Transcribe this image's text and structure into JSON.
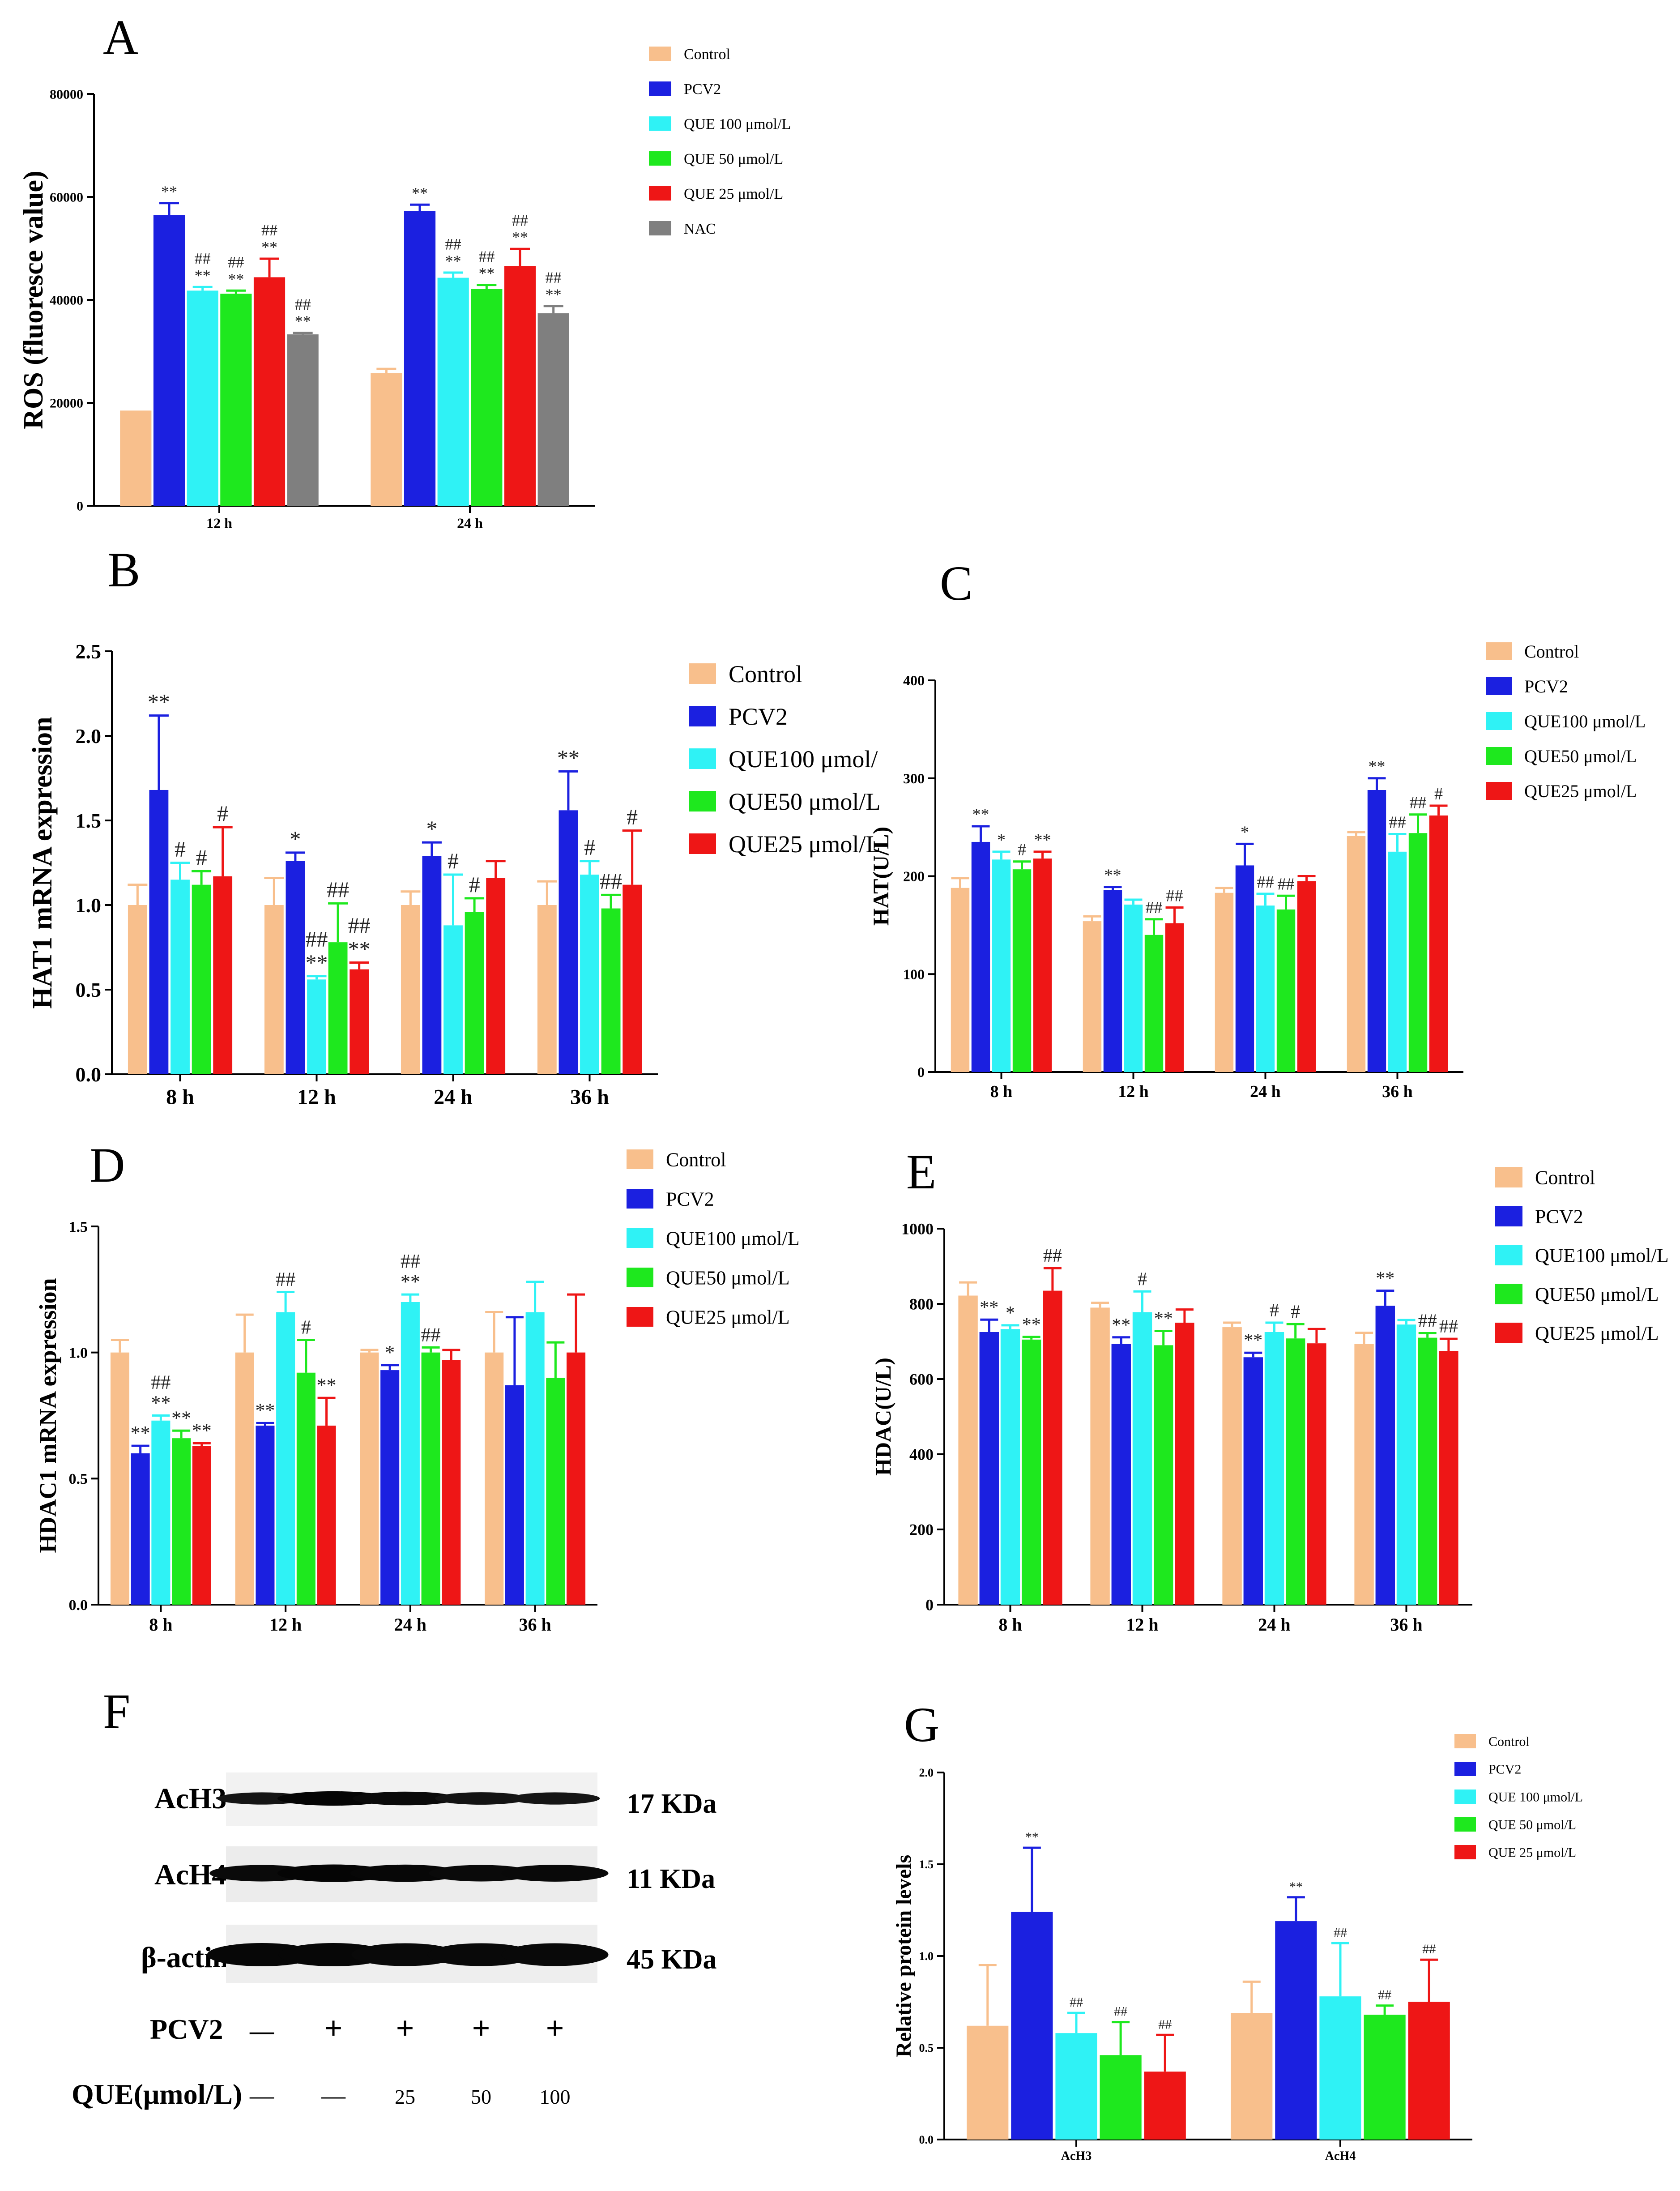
{
  "colors": {
    "Control": "#f8bf8c",
    "PCV2": "#1b20e0",
    "QUE100": "#2ff2f5",
    "QUE50": "#1ee81e",
    "QUE25": "#ee1616",
    "NAC": "#7f7f7f"
  },
  "chart_data": [
    {
      "panel": "A",
      "type": "bar",
      "title": "",
      "ylabel": "ROS (fluoresce value)",
      "xlabel": "",
      "ylim": [
        0,
        80000
      ],
      "yticks": [
        0,
        20000,
        40000,
        60000,
        80000
      ],
      "categories": [
        "12 h",
        "24 h"
      ],
      "series": [
        {
          "name": "Control",
          "key": "Control",
          "values": [
            18500,
            25800
          ],
          "errors": [
            0,
            800
          ],
          "annotations": [
            [],
            []
          ]
        },
        {
          "name": "PCV2",
          "key": "PCV2",
          "values": [
            56500,
            57300
          ],
          "errors": [
            2300,
            1200
          ],
          "annotations": [
            [
              "**"
            ],
            [
              "**"
            ]
          ]
        },
        {
          "name": "QUE 100 μmol/L",
          "key": "QUE100",
          "values": [
            41800,
            44300
          ],
          "errors": [
            700,
            1000
          ],
          "annotations": [
            [
              "##",
              "**"
            ],
            [
              "##",
              "**"
            ]
          ]
        },
        {
          "name": "QUE 50 μmol/L",
          "key": "QUE50",
          "values": [
            41200,
            42100
          ],
          "errors": [
            600,
            800
          ],
          "annotations": [
            [
              "##",
              "**"
            ],
            [
              "##",
              "**"
            ]
          ]
        },
        {
          "name": "QUE 25 μmol/L",
          "key": "QUE25",
          "values": [
            44400,
            46600
          ],
          "errors": [
            3600,
            3300
          ],
          "annotations": [
            [
              "##",
              "**"
            ],
            [
              "##",
              "**"
            ]
          ]
        },
        {
          "name": "NAC",
          "key": "NAC",
          "values": [
            33300,
            37400
          ],
          "errors": [
            300,
            1400
          ],
          "annotations": [
            [
              "##",
              "**"
            ],
            [
              "##",
              "**"
            ]
          ]
        }
      ]
    },
    {
      "panel": "B",
      "type": "bar",
      "title": "",
      "ylabel": "HAT1 mRNA expression",
      "xlabel": "",
      "ylim": [
        0,
        2.5
      ],
      "yticks": [
        0.0,
        0.5,
        1.0,
        1.5,
        2.0,
        2.5
      ],
      "categories": [
        "8 h",
        "12 h",
        "24 h",
        "36 h"
      ],
      "series": [
        {
          "name": "Control",
          "key": "Control",
          "values": [
            1.0,
            1.0,
            1.0,
            1.0
          ],
          "errors": [
            0.12,
            0.16,
            0.08,
            0.14
          ],
          "annotations": [
            [],
            [],
            [],
            []
          ]
        },
        {
          "name": "PCV2",
          "key": "PCV2",
          "values": [
            1.68,
            1.26,
            1.29,
            1.56
          ],
          "errors": [
            0.44,
            0.05,
            0.08,
            0.23
          ],
          "annotations": [
            [
              "**"
            ],
            [
              "*"
            ],
            [
              "*"
            ],
            [
              "**"
            ]
          ]
        },
        {
          "name": "QUE100 μmol/",
          "key": "QUE100",
          "values": [
            1.15,
            0.56,
            0.88,
            1.18
          ],
          "errors": [
            0.1,
            0.02,
            0.3,
            0.08
          ],
          "annotations": [
            [
              "#"
            ],
            [
              "##",
              "**"
            ],
            [
              "#"
            ],
            [
              "#"
            ]
          ]
        },
        {
          "name": "QUE50 μmol/L",
          "key": "QUE50",
          "values": [
            1.12,
            0.78,
            0.96,
            0.98
          ],
          "errors": [
            0.08,
            0.23,
            0.08,
            0.08
          ],
          "annotations": [
            [
              "#"
            ],
            [
              "##"
            ],
            [
              "#"
            ],
            [
              "##"
            ]
          ]
        },
        {
          "name": "QUE25 μmol/L",
          "key": "QUE25",
          "values": [
            1.17,
            0.62,
            1.16,
            1.12
          ],
          "errors": [
            0.29,
            0.04,
            0.1,
            0.32
          ],
          "annotations": [
            [
              "#"
            ],
            [
              "##",
              "**"
            ],
            [],
            [
              "#"
            ]
          ]
        }
      ]
    },
    {
      "panel": "C",
      "type": "bar",
      "title": "",
      "ylabel": "HAT(U/L)",
      "xlabel": "",
      "ylim": [
        0,
        400
      ],
      "yticks": [
        0,
        100,
        200,
        300,
        400
      ],
      "categories": [
        "8 h",
        "12 h",
        "24 h",
        "36 h"
      ],
      "series": [
        {
          "name": "Control",
          "key": "Control",
          "values": [
            188,
            154,
            183,
            241
          ],
          "errors": [
            10,
            5,
            5,
            4
          ],
          "annotations": [
            [],
            [],
            [],
            []
          ]
        },
        {
          "name": "PCV2",
          "key": "PCV2",
          "values": [
            235,
            186,
            211,
            288
          ],
          "errors": [
            16,
            3,
            22,
            12
          ],
          "annotations": [
            [
              "**"
            ],
            [
              "**"
            ],
            [
              "*"
            ],
            [
              "**"
            ]
          ]
        },
        {
          "name": "QUE100 μmol/L",
          "key": "QUE100",
          "values": [
            217,
            171,
            170,
            225
          ],
          "errors": [
            8,
            5,
            12,
            18
          ],
          "annotations": [
            [
              "*"
            ],
            [],
            [
              "##"
            ],
            [
              "##"
            ]
          ]
        },
        {
          "name": "QUE50 μmol/L",
          "key": "QUE50",
          "values": [
            207,
            140,
            166,
            244
          ],
          "errors": [
            8,
            16,
            14,
            19
          ],
          "annotations": [
            [
              "#"
            ],
            [
              "##"
            ],
            [
              "##"
            ],
            [
              "##"
            ]
          ]
        },
        {
          "name": "QUE25 μmol/L",
          "key": "QUE25",
          "values": [
            218,
            152,
            195,
            262
          ],
          "errors": [
            7,
            16,
            5,
            10
          ],
          "annotations": [
            [
              "**"
            ],
            [
              "##"
            ],
            [],
            [
              "#"
            ]
          ]
        }
      ]
    },
    {
      "panel": "D",
      "type": "bar",
      "title": "",
      "ylabel": "HDAC1 mRNA expression",
      "xlabel": "",
      "ylim": [
        0,
        1.5
      ],
      "yticks": [
        0.0,
        0.5,
        1.0,
        1.5
      ],
      "categories": [
        "8 h",
        "12 h",
        "24 h",
        "36 h"
      ],
      "series": [
        {
          "name": "Control",
          "key": "Control",
          "values": [
            1.0,
            1.0,
            1.0,
            1.0
          ],
          "errors": [
            0.05,
            0.15,
            0.01,
            0.16
          ],
          "annotations": [
            [],
            [],
            [],
            []
          ]
        },
        {
          "name": "PCV2",
          "key": "PCV2",
          "values": [
            0.6,
            0.71,
            0.93,
            0.87
          ],
          "errors": [
            0.03,
            0.01,
            0.02,
            0.27
          ],
          "annotations": [
            [
              "**"
            ],
            [
              "**"
            ],
            [
              "*"
            ],
            []
          ]
        },
        {
          "name": "QUE100 μmol/L",
          "key": "QUE100",
          "values": [
            0.73,
            1.16,
            1.2,
            1.16
          ],
          "errors": [
            0.02,
            0.08,
            0.03,
            0.12
          ],
          "annotations": [
            [
              "##",
              "**"
            ],
            [
              "##"
            ],
            [
              "##",
              "**"
            ],
            []
          ]
        },
        {
          "name": "QUE50 μmol/L",
          "key": "QUE50",
          "values": [
            0.66,
            0.92,
            1.0,
            0.9
          ],
          "errors": [
            0.03,
            0.13,
            0.02,
            0.14
          ],
          "annotations": [
            [
              "**"
            ],
            [
              "#"
            ],
            [
              "##"
            ],
            []
          ]
        },
        {
          "name": "QUE25 μmol/L",
          "key": "QUE25",
          "values": [
            0.63,
            0.71,
            0.97,
            1.0
          ],
          "errors": [
            0.01,
            0.11,
            0.04,
            0.23
          ],
          "annotations": [
            [
              "**"
            ],
            [
              "**"
            ],
            [],
            []
          ]
        }
      ]
    },
    {
      "panel": "E",
      "type": "bar",
      "title": "",
      "ylabel": "HDAC(U/L)",
      "xlabel": "",
      "ylim": [
        0,
        1000
      ],
      "yticks": [
        0,
        200,
        400,
        600,
        800,
        1000
      ],
      "categories": [
        "8 h",
        "12 h",
        "24 h",
        "36 h"
      ],
      "series": [
        {
          "name": "Control",
          "key": "Control",
          "values": [
            822,
            790,
            738,
            693
          ],
          "errors": [
            35,
            13,
            12,
            30
          ],
          "annotations": [
            [],
            [],
            [],
            []
          ]
        },
        {
          "name": "PCV2",
          "key": "PCV2",
          "values": [
            725,
            693,
            658,
            795
          ],
          "errors": [
            33,
            18,
            12,
            40
          ],
          "annotations": [
            [
              "**"
            ],
            [
              "**"
            ],
            [
              "**"
            ],
            [
              "**"
            ]
          ]
        },
        {
          "name": "QUE100 μmol/L",
          "key": "QUE100",
          "values": [
            733,
            778,
            725,
            745
          ],
          "errors": [
            10,
            55,
            25,
            12
          ],
          "annotations": [
            [
              "*"
            ],
            [
              "#"
            ],
            [
              "#"
            ],
            []
          ]
        },
        {
          "name": "QUE50 μmol/L",
          "key": "QUE50",
          "values": [
            705,
            690,
            708,
            710
          ],
          "errors": [
            7,
            38,
            38,
            12
          ],
          "annotations": [
            [
              "**"
            ],
            [
              "**"
            ],
            [
              "#"
            ],
            [
              "##"
            ]
          ]
        },
        {
          "name": "QUE25 μmol/L",
          "key": "QUE25",
          "values": [
            835,
            750,
            695,
            675
          ],
          "errors": [
            60,
            35,
            38,
            32
          ],
          "annotations": [
            [
              "##"
            ],
            [],
            [],
            [
              "##"
            ]
          ]
        }
      ]
    },
    {
      "panel": "G",
      "type": "bar",
      "title": "",
      "ylabel": "Relative protein levels",
      "xlabel": "",
      "ylim": [
        0,
        2.0
      ],
      "yticks": [
        0.0,
        0.5,
        1.0,
        1.5,
        2.0
      ],
      "categories": [
        "AcH3",
        "AcH4"
      ],
      "series": [
        {
          "name": "Control",
          "key": "Control",
          "values": [
            0.62,
            0.69
          ],
          "errors": [
            0.33,
            0.17
          ],
          "annotations": [
            [],
            []
          ]
        },
        {
          "name": "PCV2",
          "key": "PCV2",
          "values": [
            1.24,
            1.19
          ],
          "errors": [
            0.35,
            0.13
          ],
          "annotations": [
            [
              "**"
            ],
            [
              "**"
            ]
          ]
        },
        {
          "name": "QUE 100 μmol/L",
          "key": "QUE100",
          "values": [
            0.58,
            0.78
          ],
          "errors": [
            0.11,
            0.29
          ],
          "annotations": [
            [
              "##"
            ],
            [
              "##"
            ]
          ]
        },
        {
          "name": "QUE 50 μmol/L",
          "key": "QUE50",
          "values": [
            0.46,
            0.68
          ],
          "errors": [
            0.18,
            0.05
          ],
          "annotations": [
            [
              "##"
            ],
            [
              "##"
            ]
          ]
        },
        {
          "name": "QUE 25 μmol/L",
          "key": "QUE25",
          "values": [
            0.37,
            0.75
          ],
          "errors": [
            0.2,
            0.23
          ],
          "annotations": [
            [
              "##"
            ],
            [
              "##"
            ]
          ]
        }
      ]
    }
  ],
  "western_blot": {
    "panel": "F",
    "rows": [
      {
        "label": "AcH3",
        "size": "17 KDa",
        "intensities": [
          0.55,
          1.0,
          0.85,
          0.6,
          0.55
        ]
      },
      {
        "label": "AcH4",
        "size": "11 KDa",
        "intensities": [
          0.85,
          1.0,
          0.95,
          0.85,
          0.9
        ]
      },
      {
        "label": "β-actin",
        "size": "45 KDa",
        "intensities": [
          0.95,
          0.95,
          0.9,
          0.9,
          0.9
        ]
      }
    ],
    "treatments": [
      {
        "label": "PCV2",
        "values": [
          "—",
          "+",
          "+",
          "+",
          "+"
        ]
      },
      {
        "label": "QUE(μmol/L)",
        "values": [
          "—",
          "—",
          "25",
          "50",
          "100"
        ]
      }
    ]
  }
}
